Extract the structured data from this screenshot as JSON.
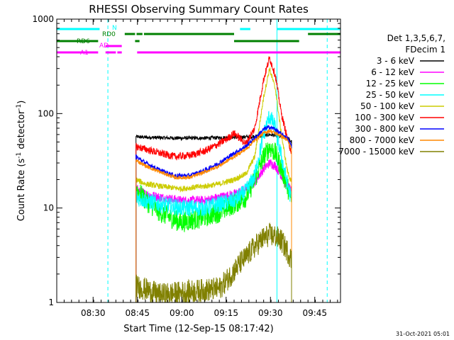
{
  "chart_data": {
    "type": "line",
    "title": "RHESSI Observing Summary Count Rates",
    "xlabel": "Start Time (12-Sep-15 08:17:42)",
    "ylabel_main": "Count Rate (s",
    "ylabel_sup1": "-1",
    "ylabel_mid": " detector",
    "ylabel_sup2": "-1",
    "ylabel_end": ")",
    "y_scale": "log",
    "ylim": [
      1,
      1000
    ],
    "xlim_minutes": [
      0,
      96
    ],
    "x_tick_labels": [
      {
        "label": "08:30",
        "minute": 12.3
      },
      {
        "label": "08:45",
        "minute": 27.3
      },
      {
        "label": "09:00",
        "minute": 42.3
      },
      {
        "label": "09:15",
        "minute": 57.3
      },
      {
        "label": "09:30",
        "minute": 72.3
      },
      {
        "label": "09:45",
        "minute": 87.3
      }
    ],
    "y_tick_labels": [
      {
        "label": "1",
        "value": 1
      },
      {
        "label": "10",
        "value": 10
      },
      {
        "label": "100",
        "value": 100
      },
      {
        "label": "1000",
        "value": 1000
      }
    ],
    "legend": {
      "title_line1": "Det 1,3,5,6,7,",
      "title_line2": "FDecim 1",
      "placement": "right"
    },
    "series": [
      {
        "name": "3 - 6 keV",
        "color": "#000000",
        "x": [
          26.8,
          30,
          40,
          50,
          60,
          66,
          70,
          72,
          75,
          78,
          79.5
        ],
        "y": [
          57,
          56,
          55,
          55,
          56,
          57,
          58,
          60,
          58,
          55,
          50
        ]
      },
      {
        "name": "6 - 12 keV",
        "color": "#ff00ff",
        "x": [
          26.8,
          30,
          35,
          42,
          50,
          55,
          60,
          64,
          67,
          70,
          72,
          74,
          76,
          78,
          79.5
        ],
        "y": [
          16,
          14,
          13,
          12,
          12,
          13,
          14,
          16,
          19,
          26,
          30,
          28,
          22,
          17,
          15
        ]
      },
      {
        "name": "12 - 25 keV",
        "color": "#00ff00",
        "x": [
          26.8,
          30,
          35,
          42,
          50,
          55,
          60,
          64,
          67,
          70,
          72,
          74,
          76,
          78,
          79.5
        ],
        "y": [
          16,
          12,
          9,
          7,
          8,
          9,
          11,
          13,
          20,
          35,
          44,
          38,
          26,
          17,
          12
        ]
      },
      {
        "name": "25 - 50 keV",
        "color": "#00ffff",
        "x": [
          26.8,
          30,
          35,
          42,
          50,
          55,
          60,
          64,
          67,
          70,
          72,
          74,
          76,
          78,
          79.5
        ],
        "y": [
          13,
          12,
          11,
          10,
          10,
          11,
          12,
          15,
          22,
          60,
          95,
          70,
          35,
          18,
          12
        ]
      },
      {
        "name": "50 - 100 keV",
        "color": "#cccc00",
        "x": [
          26.8,
          30,
          35,
          42,
          50,
          55,
          60,
          64,
          67,
          70,
          72,
          74,
          76,
          78,
          79.5
        ],
        "y": [
          20,
          18,
          17,
          16,
          17,
          18,
          20,
          23,
          35,
          150,
          300,
          180,
          60,
          25,
          18
        ]
      },
      {
        "name": "100 - 300 keV",
        "color": "#ff0000",
        "x": [
          26.8,
          30,
          35,
          40,
          45,
          50,
          55,
          58,
          60,
          64,
          67,
          70,
          72,
          74,
          76,
          78,
          79.5
        ],
        "y": [
          45,
          42,
          38,
          35,
          36,
          40,
          48,
          55,
          62,
          48,
          70,
          230,
          390,
          250,
          100,
          55,
          38
        ]
      },
      {
        "name": "300 - 800 keV",
        "color": "#0000ff",
        "x": [
          26.8,
          30,
          35,
          40,
          45,
          50,
          55,
          60,
          64,
          67,
          70,
          72,
          74,
          76,
          78,
          79.5
        ],
        "y": [
          35,
          30,
          25,
          22,
          22,
          25,
          30,
          38,
          45,
          55,
          68,
          72,
          68,
          60,
          55,
          45
        ]
      },
      {
        "name": "800 - 7000 keV",
        "color": "#ff8800",
        "x": [
          26.8,
          30,
          35,
          40,
          45,
          50,
          55,
          60,
          64,
          67,
          70,
          72,
          74,
          76,
          78,
          79.5
        ],
        "y": [
          32,
          28,
          24,
          21,
          21,
          24,
          28,
          35,
          42,
          52,
          62,
          66,
          62,
          58,
          52,
          42
        ]
      },
      {
        "name": "7000 - 15000 keV",
        "color": "#808000",
        "x": [
          26.8,
          35,
          45,
          55,
          58,
          62,
          64,
          66,
          68,
          70,
          72,
          74,
          76,
          78,
          79.5
        ],
        "y": [
          1.5,
          1.2,
          1.3,
          1.4,
          1.8,
          2.6,
          3.0,
          3.6,
          4.2,
          4.8,
          5.2,
          5.0,
          4.5,
          3.5,
          2.8
        ]
      }
    ],
    "flags": [
      {
        "name": "N",
        "color": "#00ffff",
        "label_color": "#00ffff",
        "segments": [
          [
            0,
            14.5
          ],
          [
            62,
            65.5
          ],
          [
            74.5,
            96
          ]
        ]
      },
      {
        "name": "RD0",
        "color": "#008000",
        "label_color": "#008000",
        "segments": [
          [
            23,
            26.5
          ],
          [
            27,
            29
          ],
          [
            29.5,
            60
          ],
          [
            85,
            96
          ]
        ]
      },
      {
        "name": "RD6",
        "color": "#008000",
        "label_color": "#008000",
        "segments": [
          [
            0,
            14
          ],
          [
            26.5,
            28
          ],
          [
            60,
            82
          ]
        ]
      },
      {
        "name": "AD",
        "color": "#ff00ff",
        "label_color": "#ff00ff",
        "segments": [
          [
            16.5,
            22
          ]
        ]
      },
      {
        "name": "A1",
        "color": "#ff00ff",
        "label_color": "#ff00ff",
        "segments": [
          [
            0,
            14
          ],
          [
            16.5,
            20
          ],
          [
            20.5,
            22
          ],
          [
            27.2,
            96
          ]
        ]
      }
    ],
    "vlines": [
      {
        "minute": 0,
        "color": "#00ffff",
        "style": "solid"
      },
      {
        "minute": 17.3,
        "color": "#00ffff",
        "style": "dashed"
      },
      {
        "minute": 74.5,
        "color": "#00ffff",
        "style": "solid"
      },
      {
        "minute": 91.5,
        "color": "#00ffff",
        "style": "dashed"
      }
    ]
  },
  "footer": {
    "timestamp": "31-Oct-2021 05:01"
  }
}
